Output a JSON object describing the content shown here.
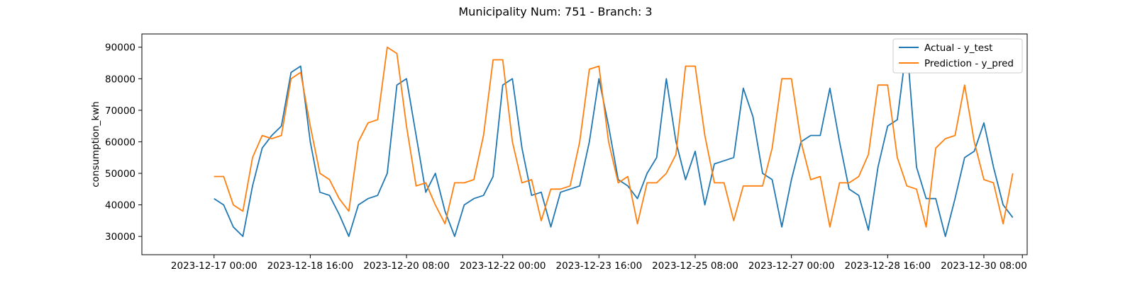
{
  "chart_data": {
    "type": "line",
    "title": "Municipality Num: 751 - Branch: 3",
    "xlabel": "",
    "ylabel": "consumption_kwh",
    "x_start": "2023-12-17 00:00",
    "x_step_hours": 4,
    "xlim_index": [
      -7.5,
      84.5
    ],
    "ylim": [
      24200,
      94200
    ],
    "yticks": [
      30000,
      40000,
      50000,
      60000,
      70000,
      80000,
      90000
    ],
    "yticklabels": [
      "30000",
      "40000",
      "50000",
      "60000",
      "70000",
      "80000",
      "90000"
    ],
    "xtick_index": [
      0,
      10,
      20,
      30,
      40,
      50,
      60,
      70,
      80,
      84
    ],
    "xticklabels": [
      "2023-12-17 00:00",
      "2023-12-18 16:00",
      "2023-12-20 08:00",
      "2023-12-22 00:00",
      "2023-12-23 16:00",
      "2023-12-25 08:00",
      "2023-12-27 00:00",
      "2023-12-28 16:00",
      "2023-12-30 08:00",
      ""
    ],
    "grid": false,
    "legend_position": "top-right",
    "series": [
      {
        "name": "Actual - y_test",
        "color": "#1f77b4",
        "values": [
          42000,
          40000,
          33000,
          30000,
          46000,
          58000,
          62000,
          65000,
          82000,
          84000,
          60000,
          44000,
          43000,
          37000,
          30000,
          40000,
          42000,
          43000,
          50000,
          78000,
          80000,
          62000,
          44000,
          50000,
          38000,
          30000,
          40000,
          42000,
          43000,
          49000,
          78000,
          80000,
          58000,
          43000,
          44000,
          33000,
          44000,
          45000,
          46000,
          60000,
          80000,
          65000,
          48000,
          46000,
          42000,
          50000,
          55000,
          80000,
          60000,
          48000,
          57000,
          40000,
          53000,
          54000,
          55000,
          77000,
          68000,
          50000,
          48000,
          33000,
          48000,
          60000,
          62000,
          62000,
          77000,
          60000,
          45000,
          43000,
          32000,
          52000,
          65000,
          67000,
          91000,
          52000,
          42000,
          42000,
          30000,
          42000,
          55000,
          57000,
          66000,
          52000,
          40000,
          36000
        ]
      },
      {
        "name": "Prediction - y_pred",
        "color": "#ff7f0e",
        "values": [
          49000,
          49000,
          40000,
          38000,
          55000,
          62000,
          61000,
          62000,
          80000,
          82000,
          65000,
          50000,
          48000,
          42000,
          38000,
          60000,
          66000,
          67000,
          90000,
          88000,
          65000,
          46000,
          47000,
          40000,
          34000,
          47000,
          47000,
          48000,
          62000,
          86000,
          86000,
          60000,
          47000,
          48000,
          35000,
          45000,
          45000,
          46000,
          60000,
          83000,
          84000,
          60000,
          47000,
          49000,
          34000,
          47000,
          47000,
          50000,
          56000,
          84000,
          84000,
          62000,
          47000,
          47000,
          35000,
          46000,
          46000,
          46000,
          58000,
          80000,
          80000,
          60000,
          48000,
          49000,
          33000,
          47000,
          47000,
          49000,
          56000,
          78000,
          78000,
          55000,
          46000,
          45000,
          33000,
          58000,
          61000,
          62000,
          78000,
          60000,
          48000,
          47000,
          34000,
          50000
        ]
      }
    ]
  }
}
